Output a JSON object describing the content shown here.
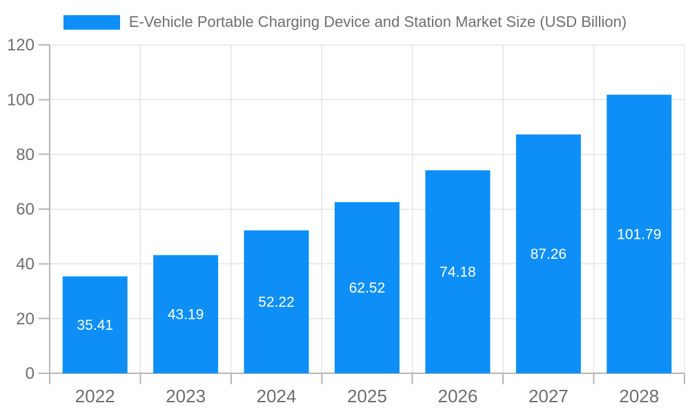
{
  "chart_data": {
    "type": "bar",
    "title": "E-Vehicle Portable Charging Device and Station Market Size (USD Billion)",
    "legend": {
      "position": "top",
      "entries": [
        "E-Vehicle Portable Charging Device and Station Market Size (USD Billion)"
      ]
    },
    "categories": [
      "2022",
      "2023",
      "2024",
      "2025",
      "2026",
      "2027",
      "2028"
    ],
    "values": [
      35.41,
      43.19,
      52.22,
      62.52,
      74.18,
      87.26,
      101.79
    ],
    "value_labels": [
      "35.41",
      "43.19",
      "52.22",
      "62.52",
      "74.18",
      "87.26",
      "101.79"
    ],
    "xlabel": "",
    "ylabel": "",
    "ylim": [
      0,
      120
    ],
    "y_ticks": [
      0,
      20,
      40,
      60,
      80,
      100,
      120
    ],
    "grid": true,
    "colors": {
      "bar": "#0d8ff7",
      "grid": "#e4e4e4",
      "axis": "#b5b5b5",
      "tick_text": "#6e6e6e",
      "title_text": "#6e6e6e",
      "value_label_text": "#ffffff",
      "background": "#ffffff"
    }
  }
}
